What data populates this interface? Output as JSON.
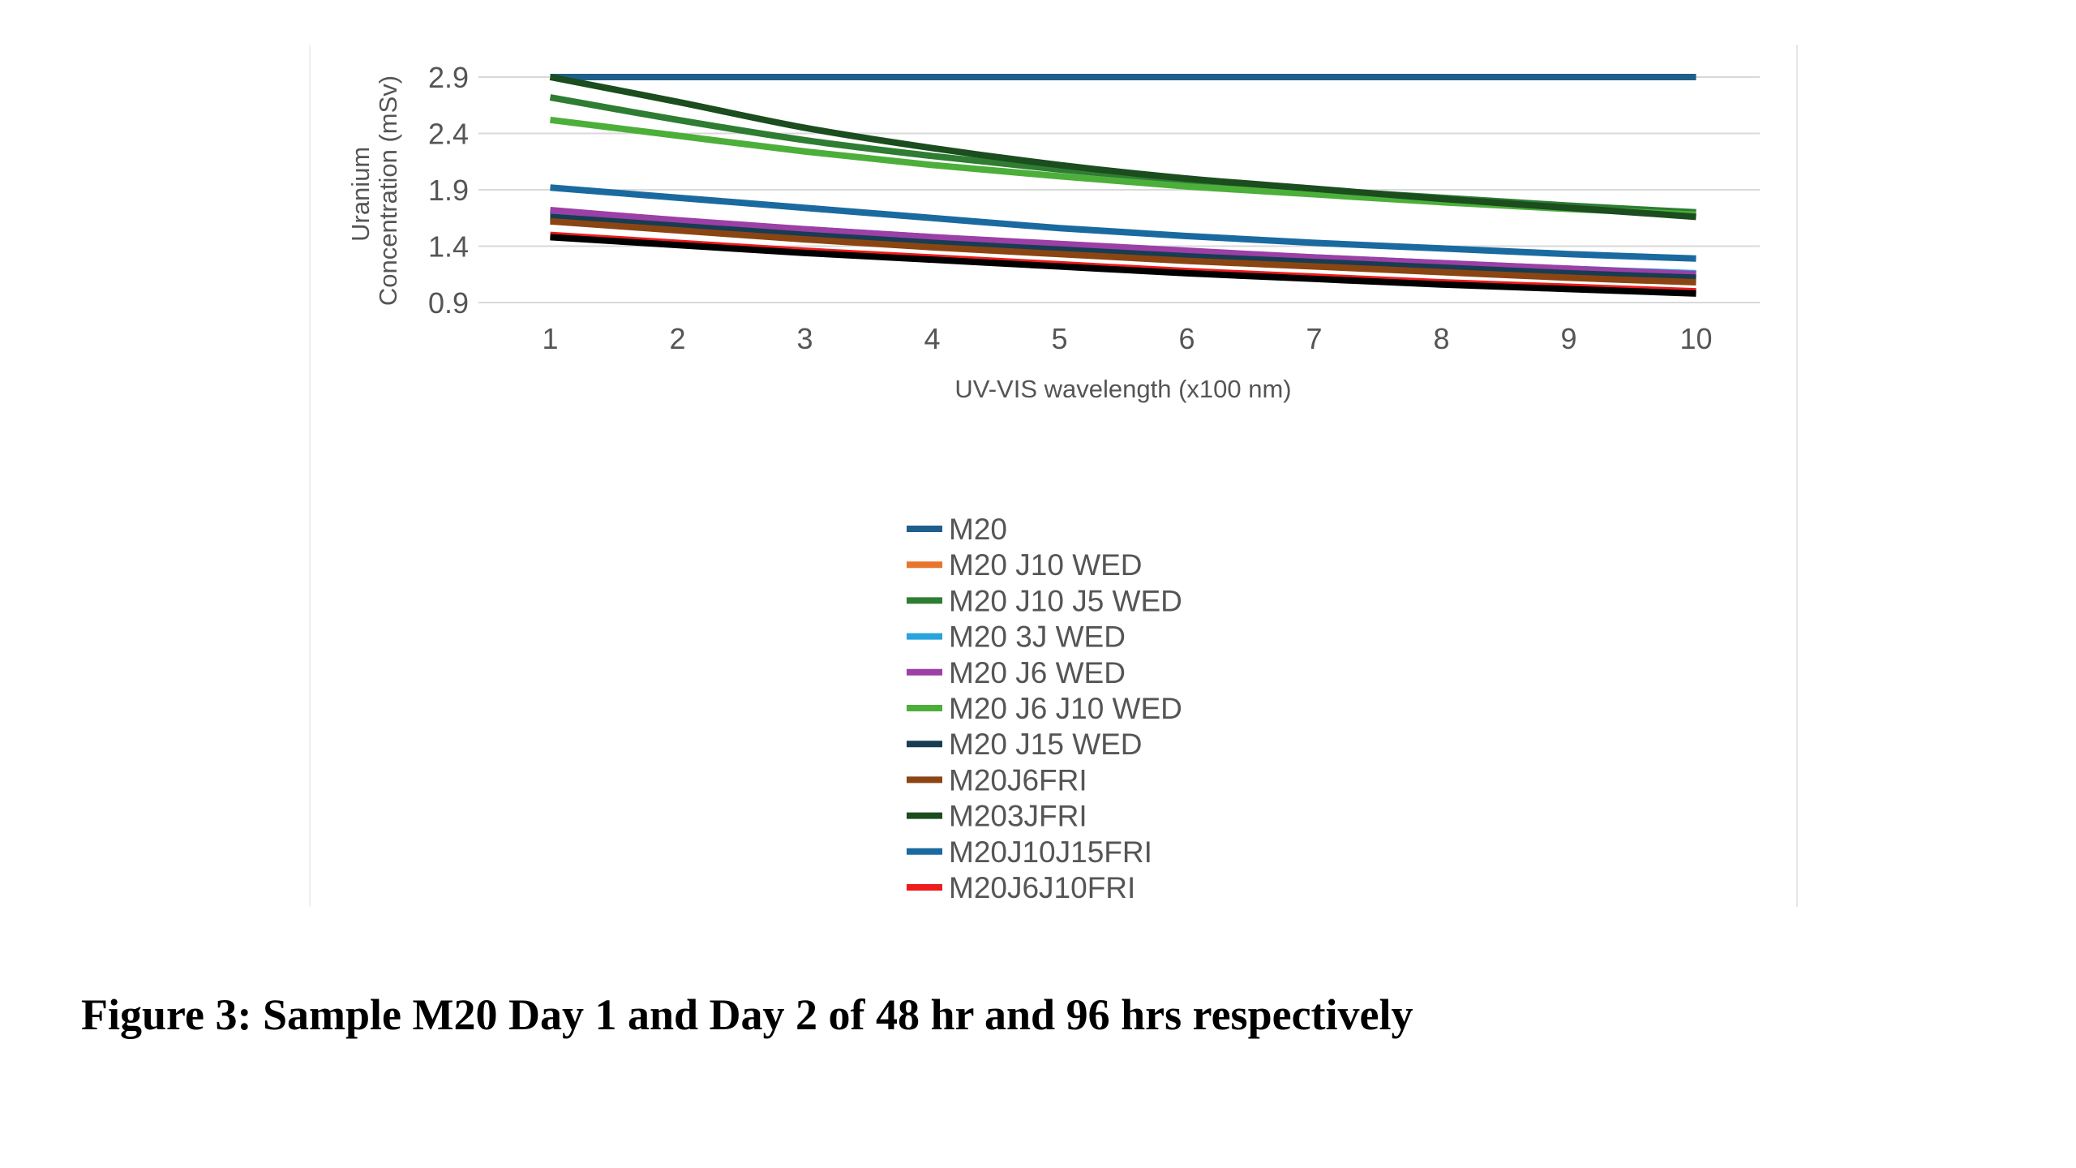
{
  "caption": "Figure 3: Sample M20 Day 1 and Day 2 of 48 hr and 96 hrs respectively",
  "chart_data": {
    "type": "line",
    "xlabel": "UV-VIS wavelength (x100 nm)",
    "ylabel_lines": [
      "Uranium",
      "Concentration (mSv)"
    ],
    "x": [
      1,
      2,
      3,
      4,
      5,
      6,
      7,
      8,
      9,
      10
    ],
    "xlim": [
      0.5,
      10.5
    ],
    "ylim": [
      0.9,
      2.9
    ],
    "yticks": [
      0.9,
      1.4,
      1.9,
      2.4,
      2.9
    ],
    "ytick_labels": [
      "0.9",
      "1.4",
      "1.9",
      "2.4",
      "2.9"
    ],
    "xtick_labels": [
      "1",
      "2",
      "3",
      "4",
      "5",
      "6",
      "7",
      "8",
      "9",
      "10"
    ],
    "grid": true,
    "legend_position": "bottom",
    "series": [
      {
        "name": "M20",
        "color": "#1f5f8b",
        "values": [
          2.9,
          2.9,
          2.9,
          2.9,
          2.9,
          2.9,
          2.9,
          2.9,
          2.9,
          2.9
        ]
      },
      {
        "name": "M20 J10 WED",
        "color": "#e8742e",
        "values": [
          1.64,
          1.56,
          1.49,
          1.42,
          1.36,
          1.3,
          1.25,
          1.2,
          1.15,
          1.11
        ]
      },
      {
        "name": "M20 J10 J5 WED",
        "color": "#2e7d32",
        "values": [
          2.72,
          2.52,
          2.34,
          2.2,
          2.08,
          1.98,
          1.9,
          1.83,
          1.76,
          1.7
        ]
      },
      {
        "name": "M20 3J WED",
        "color": "#29a3dc",
        "values": [
          1.7,
          1.62,
          1.55,
          1.48,
          1.41,
          1.35,
          1.3,
          1.25,
          1.2,
          1.16
        ]
      },
      {
        "name": "M20 J6 WED",
        "color": "#9c3fa6",
        "values": [
          1.72,
          1.63,
          1.55,
          1.48,
          1.42,
          1.36,
          1.3,
          1.25,
          1.2,
          1.15
        ]
      },
      {
        "name": "M20 J6 J10 WED",
        "color": "#4caf3a",
        "values": [
          2.52,
          2.38,
          2.24,
          2.12,
          2.02,
          1.93,
          1.86,
          1.79,
          1.73,
          1.68
        ]
      },
      {
        "name": "M20 J15 WED",
        "color": "#163d52",
        "values": [
          1.66,
          1.58,
          1.5,
          1.43,
          1.37,
          1.31,
          1.26,
          1.21,
          1.16,
          1.12
        ]
      },
      {
        "name": "M20J6FRI",
        "color": "#8b4513",
        "values": [
          1.62,
          1.54,
          1.46,
          1.39,
          1.33,
          1.27,
          1.22,
          1.17,
          1.12,
          1.08
        ]
      },
      {
        "name": "M203JFRI",
        "color": "#1b4d1e",
        "values": [
          2.9,
          2.68,
          2.45,
          2.27,
          2.12,
          2.0,
          1.91,
          1.82,
          1.74,
          1.66
        ]
      },
      {
        "name": "M20J10J15FRI",
        "color": "#1a6aa0",
        "values": [
          1.92,
          1.83,
          1.74,
          1.65,
          1.56,
          1.49,
          1.43,
          1.38,
          1.33,
          1.29
        ]
      },
      {
        "name": "M20J6J10FRI",
        "color": "#ee1c1c",
        "values": [
          1.5,
          1.43,
          1.36,
          1.3,
          1.24,
          1.18,
          1.13,
          1.08,
          1.04,
          1.0
        ]
      },
      {
        "name": "",
        "color": "#000000",
        "values": [
          1.48,
          1.41,
          1.34,
          1.28,
          1.22,
          1.16,
          1.11,
          1.06,
          1.02,
          0.98
        ]
      }
    ]
  }
}
